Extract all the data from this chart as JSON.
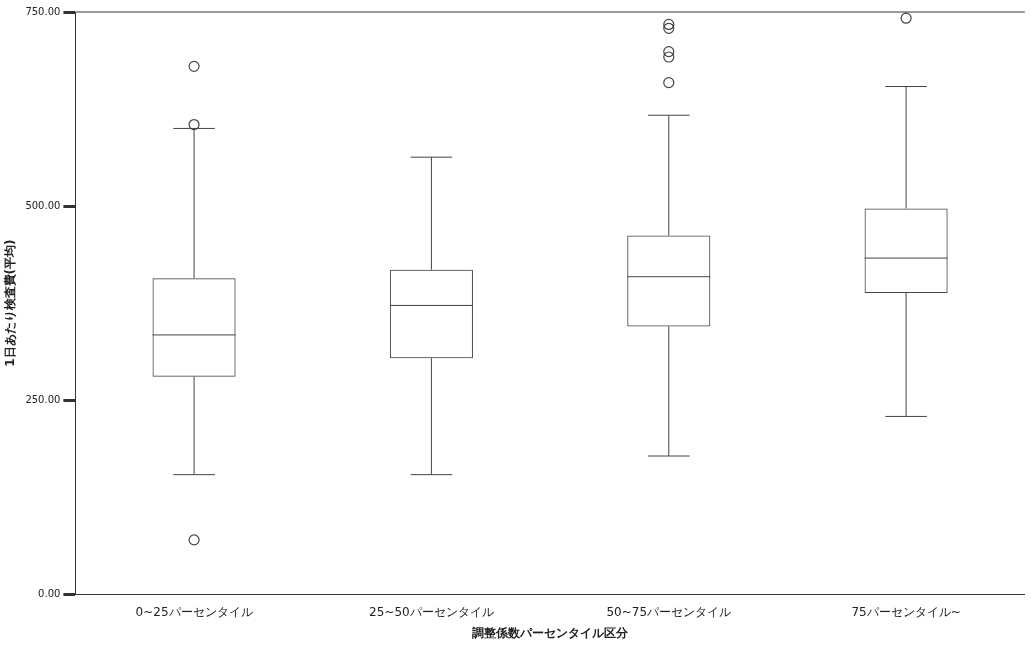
{
  "chart_data": {
    "type": "box",
    "xlabel": "調整係数パーセンタイル区分",
    "ylabel": "1日あたり検査費(平均)",
    "categories": [
      "0~25パーセンタイル",
      "25~50パーセンタイル",
      "50~75パーセンタイル",
      "75パーセンタイル~"
    ],
    "boxes": [
      {
        "low": 154,
        "q1": 280,
        "median": 334,
        "q3": 407,
        "high": 600,
        "outliers": [
          605,
          680,
          70
        ]
      },
      {
        "low": 154,
        "q1": 304,
        "median": 372,
        "q3": 418,
        "high": 563
      },
      {
        "low": 178,
        "q1": 345,
        "median": 409,
        "q3": 462,
        "high": 617,
        "outliers": [
          659,
          692,
          699,
          729,
          734
        ]
      },
      {
        "low": 229,
        "q1": 388,
        "median": 433,
        "q3": 497,
        "high": 654,
        "outliers": [
          742
        ]
      }
    ],
    "color": "#444444",
    "ylim": [
      0,
      750
    ],
    "yticks": [
      {
        "value": 0,
        "label": "0.00"
      },
      {
        "value": 250,
        "label": "250.00"
      },
      {
        "value": 500,
        "label": "500.00"
      },
      {
        "value": 750,
        "label": "750.00"
      }
    ],
    "grid": false
  }
}
